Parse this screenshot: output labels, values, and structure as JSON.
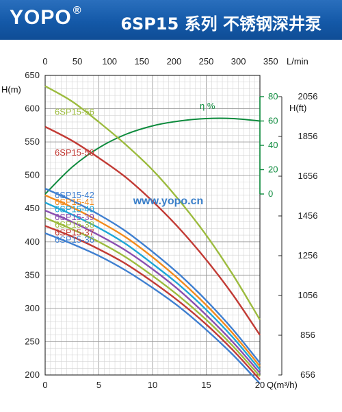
{
  "header": {
    "brand": "YOPO",
    "brand_mark": "®",
    "product_title": "6SP15 系列 不锈钢深井泵"
  },
  "watermark": "www.yopo.cn",
  "colors": {
    "banner": "#1459a8",
    "eta": "#0c8a3c"
  },
  "chart_data": {
    "type": "line",
    "x_bottom": {
      "label": "Q(m³/h)",
      "range": [
        0,
        20
      ],
      "ticks": [
        "0",
        "5",
        "10",
        "15",
        "20"
      ]
    },
    "x_top": {
      "label": "L/min",
      "range": [
        0,
        333.3
      ],
      "ticks": [
        "0",
        "50",
        "100",
        "150",
        "200",
        "250",
        "300",
        "350"
      ]
    },
    "y_left": {
      "label": "H(m)",
      "range": [
        200,
        650
      ],
      "ticks": [
        "200",
        "250",
        "300",
        "350",
        "400",
        "450",
        "500",
        "550",
        "600",
        "650"
      ]
    },
    "y_right": {
      "label": "H(ft)",
      "ticks": [
        "656",
        "856",
        "1056",
        "1256",
        "1456",
        "1656",
        "1856",
        "2056"
      ]
    },
    "y_eta": {
      "label": "η %",
      "range": [
        0,
        80
      ],
      "ticks": [
        "0",
        "20",
        "40",
        "60",
        "80"
      ]
    },
    "grid": true,
    "x": [
      0,
      2.5,
      5,
      7.5,
      10,
      12.5,
      15,
      17.5,
      20
    ],
    "series": [
      {
        "name": "6SP15-56",
        "color": "#9cbb3e",
        "values": [
          634,
          611,
          580,
          546,
          508,
          462,
          410,
          350,
          283
        ]
      },
      {
        "name": "6SP15-50",
        "color": "#c23b35",
        "values": [
          573,
          552,
          526,
          497,
          461,
          420,
          373,
          320,
          260
        ]
      },
      {
        "name": "6SP15-42",
        "color": "#3f7fd0",
        "values": [
          480,
          462,
          441,
          416,
          385,
          351,
          312,
          268,
          218
        ]
      },
      {
        "name": "6SP15-41",
        "color": "#f28a1c",
        "values": [
          470,
          452,
          431,
          407,
          377,
          343,
          305,
          262,
          213
        ]
      },
      {
        "name": "6SP15-40",
        "color": "#1ea6d6",
        "values": [
          459,
          441,
          421,
          397,
          367,
          335,
          298,
          256,
          208
        ]
      },
      {
        "name": "6SP15-39",
        "color": "#8a4fb0",
        "values": [
          447,
          430,
          410,
          387,
          359,
          327,
          290,
          249,
          203
        ]
      },
      {
        "name": "6SP15-38",
        "color": "#9cbb3e",
        "values": [
          436,
          419,
          400,
          377,
          349,
          318,
          283,
          243,
          198
        ]
      },
      {
        "name": "6SP15-37",
        "color": "#c23b35",
        "values": [
          424,
          408,
          389,
          367,
          340,
          310,
          276,
          237,
          193
        ]
      },
      {
        "name": "6SP15-36",
        "color": "#3f7fd0",
        "values": [
          413,
          397,
          379,
          357,
          331,
          302,
          268,
          230,
          187
        ]
      }
    ],
    "efficiency": {
      "name": "η %",
      "color": "#0c8a3c",
      "x": [
        0,
        2.5,
        5,
        7.5,
        10,
        12.5,
        15,
        17.5,
        20
      ],
      "values": [
        0,
        22,
        38,
        49,
        56,
        60,
        62,
        62,
        60
      ]
    }
  }
}
